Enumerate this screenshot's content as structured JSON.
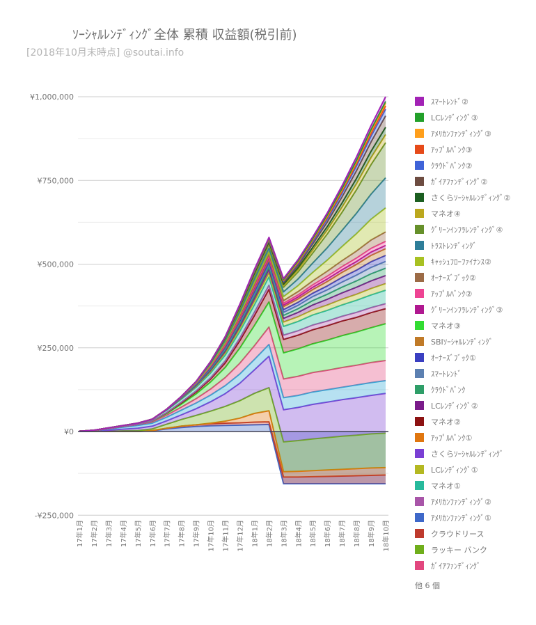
{
  "chart_data": {
    "type": "area",
    "stacked": true,
    "title": "ｿｰｼｬﾙﾚﾝﾃﾞｨﾝｸﾞ全体  累積 収益額(税引前)",
    "subtitle": "[2018年10月末時点]  @soutai.info",
    "value_unit": "thousand JPY",
    "ylim": [
      -250000,
      1000000
    ],
    "grid": true,
    "legend_position": "right",
    "legend_footer": "他 6 個",
    "y_ticks": [
      {
        "value": 1000000,
        "label": "¥1,000,000"
      },
      {
        "value": 750000,
        "label": "¥750,000"
      },
      {
        "value": 500000,
        "label": "¥500,000"
      },
      {
        "value": 250000,
        "label": "¥250,000"
      },
      {
        "value": 0,
        "label": "¥0"
      },
      {
        "value": -250000,
        "label": "-¥250,000"
      }
    ],
    "y_minor_ticks": [
      875000,
      625000,
      375000,
      125000,
      -125000
    ],
    "categories": [
      "17年1月",
      "17年2月",
      "17年3月",
      "17年4月",
      "17年5月",
      "17年6月",
      "17年7月",
      "17年8月",
      "17年9月",
      "17年10月",
      "17年11月",
      "17年12月",
      "18年1月",
      "18年2月",
      "18年3月",
      "18年4月",
      "18年5月",
      "18年6月",
      "18年7月",
      "18年8月",
      "18年9月",
      "18年10月"
    ],
    "series_note": "values_k = cumulative profit per service in units of ¥1,000; stack order = bottom to top; legend_rank = position in on-screen legend (1 = top)",
    "series": [
      {
        "label": "ｱﾒﾘｶﾝﾌｧﾝﾃﾞｨﾝｸﾞ①",
        "color": "#3E68C9",
        "legend_rank": 27,
        "values_k": [
          0,
          0,
          0,
          0,
          0,
          2,
          8,
          12,
          15,
          17,
          18,
          19,
          20,
          21,
          -156,
          -156,
          -156,
          -156,
          -156,
          -156,
          -156,
          -156
        ]
      },
      {
        "label": "クラウドリース",
        "color": "#BE3A2D",
        "legend_rank": 28,
        "values_k": [
          0,
          0,
          0,
          0,
          0,
          1,
          2,
          4,
          5,
          6,
          7,
          7,
          8,
          8,
          20,
          20,
          21,
          22,
          23,
          24,
          25,
          26
        ]
      },
      {
        "label": "ｱｯﾌﾟﾙﾊﾞﾝｸ①",
        "color": "#E0760F",
        "legend_rank": 22,
        "values_k": [
          0,
          0,
          0,
          0,
          0,
          0,
          0,
          0,
          0,
          2,
          6,
          14,
          26,
          33,
          16,
          17,
          18,
          19,
          20,
          21,
          22,
          22
        ]
      },
      {
        "label": "ラッキー バンク",
        "color": "#6FAE1B",
        "legend_rank": 29,
        "values_k": [
          0,
          0,
          1,
          2,
          3,
          5,
          12,
          20,
          28,
          36,
          44,
          52,
          60,
          69,
          89,
          92,
          95,
          97,
          99,
          100,
          102,
          103
        ]
      },
      {
        "label": "さくらｿｰｼｬﾙﾚﾝﾃﾞｨﾝｸﾞ",
        "color": "#7A3FD4",
        "legend_rank": 23,
        "values_k": [
          0,
          1,
          3,
          5,
          7,
          8,
          10,
          14,
          20,
          28,
          38,
          52,
          70,
          94,
          96,
          99,
          103,
          106,
          109,
          112,
          115,
          119
        ]
      },
      {
        "label": "他 6 個",
        "color": "#30A8D8",
        "legend_rank": null,
        "values_k": [
          1,
          2,
          4,
          6,
          8,
          9,
          11,
          14,
          17,
          20,
          24,
          28,
          31,
          35,
          36,
          36,
          37,
          37,
          37,
          38,
          38,
          38
        ]
      },
      {
        "label": "ｶﾞｲｱﾌｧﾝﾃﾞｨﾝｸﾞ",
        "color": "#E2477E",
        "legend_rank": 30,
        "values_k": [
          0,
          0,
          1,
          2,
          3,
          4,
          6,
          9,
          13,
          18,
          24,
          32,
          41,
          52,
          56,
          57,
          58,
          58,
          59,
          59,
          60,
          60
        ]
      },
      {
        "label": "マネオ③",
        "color": "#32DC32",
        "legend_rank": 15,
        "values_k": [
          0,
          0,
          0,
          0,
          0,
          2,
          5,
          9,
          14,
          21,
          30,
          45,
          60,
          75,
          78,
          82,
          86,
          90,
          95,
          99,
          104,
          110
        ]
      },
      {
        "label": "マネオ②",
        "color": "#8C1212",
        "legend_rank": 21,
        "values_k": [
          0,
          0,
          0,
          0,
          0,
          1,
          2,
          4,
          6,
          9,
          14,
          22,
          30,
          38,
          40,
          41,
          42,
          43,
          44,
          44,
          45,
          45
        ]
      },
      {
        "label": "ｱﾒﾘｶﾝﾌｧﾝﾃﾞｨﾝｸﾞ②",
        "color": "#A855A8",
        "legend_rank": 26,
        "values_k": [
          0,
          0,
          0,
          0,
          0,
          0,
          1,
          2,
          3,
          4,
          6,
          8,
          10,
          12,
          13,
          13,
          14,
          14,
          14,
          15,
          15,
          15
        ]
      },
      {
        "label": "マネオ①",
        "color": "#27BA9C",
        "legend_rank": 25,
        "values_k": [
          0,
          1,
          2,
          3,
          4,
          5,
          7,
          9,
          11,
          14,
          17,
          20,
          22,
          25,
          26,
          28,
          30,
          32,
          34,
          36,
          38,
          40
        ]
      },
      {
        "label": "LCﾚﾝﾃﾞｨﾝｸﾞ①",
        "color": "#B4B821",
        "legend_rank": 24,
        "values_k": [
          0,
          0,
          0,
          0,
          0,
          0,
          1,
          2,
          3,
          5,
          7,
          9,
          11,
          12,
          13,
          14,
          15,
          16,
          17,
          18,
          19,
          20
        ]
      },
      {
        "label": "LCﾚﾝﾃﾞｨﾝｸﾞ②",
        "color": "#7A1B8A",
        "legend_rank": 20,
        "values_k": [
          0,
          0,
          0,
          0,
          0,
          0,
          0,
          1,
          2,
          3,
          5,
          7,
          9,
          10,
          11,
          13,
          15,
          17,
          19,
          21,
          23,
          24
        ]
      },
      {
        "label": "ｸﾗｳﾄﾞﾊﾞﾝｸ",
        "color": "#2E9E68",
        "legend_rank": 19,
        "values_k": [
          0,
          0,
          0,
          0,
          0,
          0,
          1,
          1,
          2,
          3,
          4,
          6,
          7,
          8,
          9,
          11,
          13,
          15,
          17,
          19,
          21,
          22
        ]
      },
      {
        "label": "ｽﾏｰﾄﾚﾝﾄﾞ",
        "color": "#5C80B1",
        "legend_rank": 18,
        "values_k": [
          0,
          0,
          0,
          0,
          0,
          0,
          0,
          1,
          2,
          3,
          4,
          5,
          7,
          8,
          9,
          10,
          12,
          13,
          15,
          17,
          19,
          20
        ]
      },
      {
        "label": "ｵｰﾅｰｽﾞﾌﾞｯｸ①",
        "color": "#3A3FC1",
        "legend_rank": 17,
        "values_k": [
          0,
          0,
          0,
          0,
          0,
          0,
          0,
          1,
          1,
          2,
          3,
          4,
          6,
          7,
          8,
          9,
          10,
          12,
          14,
          15,
          17,
          18
        ]
      },
      {
        "label": "SBIｿｰｼｬﾙﾚﾝﾃﾞｨﾝｸﾞ",
        "color": "#C07A28",
        "legend_rank": 16,
        "values_k": [
          0,
          0,
          0,
          0,
          0,
          0,
          1,
          1,
          2,
          3,
          4,
          5,
          7,
          8,
          9,
          10,
          11,
          13,
          15,
          17,
          19,
          20
        ]
      },
      {
        "label": "ｸﾞﾘｰﾝｲﾝﾌﾗﾚﾝﾃﾞｨﾝｸﾞ③",
        "color": "#B01890",
        "legend_rank": 14,
        "values_k": [
          0,
          0,
          0,
          0,
          0,
          0,
          0,
          0,
          1,
          2,
          3,
          4,
          5,
          5,
          5,
          6,
          7,
          8,
          8,
          9,
          10,
          10
        ]
      },
      {
        "label": "ｱｯﾌﾟﾙﾊﾞﾝｸ②",
        "color": "#EE4493",
        "legend_rank": 13,
        "values_k": [
          0,
          0,
          0,
          0,
          0,
          0,
          0,
          0,
          0,
          1,
          2,
          3,
          4,
          4,
          5,
          6,
          7,
          8,
          9,
          10,
          11,
          12
        ]
      },
      {
        "label": "ｵｰﾅｰｽﾞﾌﾞｯｸ②",
        "color": "#9C6B46",
        "legend_rank": 12,
        "values_k": [
          0,
          0,
          0,
          0,
          0,
          0,
          0,
          0,
          1,
          2,
          3,
          4,
          5,
          6,
          8,
          10,
          12,
          15,
          18,
          21,
          25,
          28
        ]
      },
      {
        "label": "ｷｬｯｼｭﾌﾛｰﾌｧｲﾅﾝｽ②",
        "color": "#A8C122",
        "legend_rank": 11,
        "values_k": [
          0,
          0,
          0,
          0,
          0,
          0,
          0,
          0,
          0,
          1,
          3,
          5,
          7,
          8,
          12,
          18,
          25,
          33,
          42,
          52,
          62,
          72
        ]
      },
      {
        "label": "ﾄﾗｽﾄﾚﾝﾃﾞｨﾝｸﾞ",
        "color": "#2E7E99",
        "legend_rank": 10,
        "values_k": [
          0,
          0,
          0,
          0,
          0,
          0,
          0,
          1,
          2,
          4,
          6,
          8,
          9,
          10,
          14,
          20,
          28,
          37,
          48,
          61,
          75,
          90
        ]
      },
      {
        "label": "ｸﾞﾘｰﾝｲﾝﾌﾗﾚﾝﾃﾞｨﾝｸﾞ④",
        "color": "#66902A",
        "legend_rank": 9,
        "values_k": [
          0,
          0,
          0,
          0,
          0,
          0,
          0,
          0,
          1,
          3,
          5,
          8,
          10,
          11,
          14,
          21,
          30,
          41,
          54,
          70,
          88,
          105
        ]
      },
      {
        "label": "マネオ④",
        "color": "#BCA81E",
        "legend_rank": 8,
        "values_k": [
          0,
          0,
          0,
          0,
          0,
          0,
          0,
          0,
          0,
          1,
          2,
          3,
          4,
          4,
          5,
          7,
          9,
          12,
          15,
          18,
          21,
          24
        ]
      },
      {
        "label": "さくらｿｰｼｬﾙﾚﾝﾃﾞｨﾝｸﾞ②",
        "color": "#1B5E20",
        "legend_rank": 7,
        "values_k": [
          0,
          0,
          0,
          0,
          0,
          0,
          0,
          0,
          0,
          0,
          1,
          2,
          3,
          3,
          4,
          6,
          8,
          10,
          13,
          16,
          19,
          22
        ]
      },
      {
        "label": "ｶﾞｲｱﾌｧﾝﾃﾞｨﾝｸﾞ②",
        "color": "#6D4C41",
        "legend_rank": 6,
        "values_k": [
          0,
          0,
          0,
          0,
          0,
          0,
          0,
          0,
          0,
          1,
          2,
          3,
          4,
          4,
          5,
          7,
          10,
          14,
          18,
          23,
          28,
          34
        ]
      },
      {
        "label": "ｸﾗｳﾄﾞﾊﾞﾝｸ②",
        "color": "#3F63D8",
        "legend_rank": 5,
        "values_k": [
          0,
          0,
          0,
          0,
          0,
          0,
          0,
          0,
          0,
          0,
          1,
          2,
          3,
          3,
          4,
          5,
          7,
          9,
          11,
          14,
          17,
          20
        ]
      },
      {
        "label": "ｱｯﾌﾟﾙﾊﾞﾝｸ③",
        "color": "#E64A19",
        "legend_rank": 4,
        "values_k": [
          0,
          0,
          0,
          0,
          0,
          0,
          0,
          0,
          0,
          0,
          0,
          1,
          2,
          2,
          2,
          3,
          4,
          5,
          6,
          7,
          9,
          10
        ]
      },
      {
        "label": "ｱﾒﾘｶﾝﾌｧﾝﾃﾞｨﾝｸﾞ③",
        "color": "#FF9F1C",
        "legend_rank": 3,
        "values_k": [
          0,
          0,
          0,
          0,
          0,
          0,
          0,
          0,
          0,
          0,
          0,
          1,
          1,
          2,
          2,
          3,
          3,
          4,
          5,
          6,
          7,
          8
        ]
      },
      {
        "label": "LCﾚﾝﾃﾞｨﾝｸﾞ③",
        "color": "#22A02A",
        "legend_rank": 2,
        "values_k": [
          0,
          0,
          0,
          0,
          0,
          0,
          0,
          0,
          0,
          0,
          0,
          0,
          1,
          1,
          1,
          2,
          2,
          3,
          3,
          4,
          4,
          5
        ]
      },
      {
        "label": "ｽﾏｰﾄﾚﾝﾄﾞ②",
        "color": "#A222B5",
        "legend_rank": 1,
        "values_k": [
          0,
          0,
          0,
          0,
          0,
          0,
          0,
          0,
          0,
          0,
          0,
          1,
          1,
          2,
          3,
          4,
          5,
          6,
          8,
          10,
          12,
          14
        ]
      }
    ],
    "style": {
      "major_grid_color": "#cccccc",
      "minor_grid_color": "#ebebeb",
      "zero_axis_color": "#404054",
      "axis_label_color": "#757575",
      "fill_opacity": 0.35,
      "line_width": 2
    }
  }
}
